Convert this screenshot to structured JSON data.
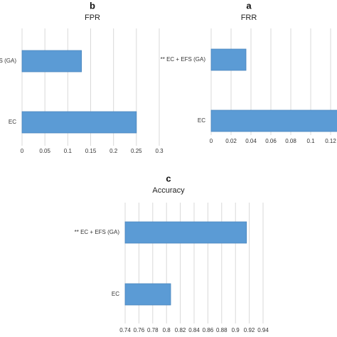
{
  "chart_data": [
    {
      "type": "barh",
      "label": "b",
      "title": "FPR",
      "categories": [
        "** EC + EFS (GA)",
        "EC"
      ],
      "values": [
        0.13,
        0.25
      ],
      "color": "#5b9bd5",
      "xlim": [
        0,
        0.3
      ],
      "xticks": [
        0,
        0.05,
        0.1,
        0.15,
        0.2,
        0.25,
        0.3
      ],
      "grid": true
    },
    {
      "type": "barh",
      "label": "a",
      "title": "FRR",
      "categories": [
        "** EC + EFS (GA)",
        "EC"
      ],
      "values": [
        0.035,
        0.13
      ],
      "color": "#5b9bd5",
      "xlim": [
        0,
        0.12
      ],
      "xticks": [
        0,
        0.02,
        0.04,
        0.06,
        0.08,
        0.1,
        0.12
      ],
      "grid": true
    },
    {
      "type": "barh",
      "label": "c",
      "title": "Accuracy",
      "categories": [
        "** EC + EFS (GA)",
        "EC"
      ],
      "values": [
        0.916,
        0.806
      ],
      "color": "#5b9bd5",
      "xlim": [
        0.74,
        0.94
      ],
      "xticks": [
        0.74,
        0.76,
        0.78,
        0.8,
        0.82,
        0.84,
        0.86,
        0.88,
        0.9,
        0.92,
        0.94
      ],
      "grid": true
    }
  ]
}
